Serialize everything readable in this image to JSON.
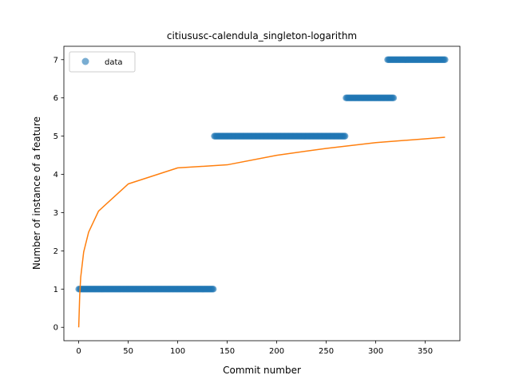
{
  "chart_data": {
    "type": "scatter",
    "title": "citiususc-calendula_singleton-logarithm",
    "xlabel": "Commit number",
    "ylabel": "Number of instance of a feature",
    "xlim": [
      -15,
      385
    ],
    "ylim": [
      -0.35,
      7.35
    ],
    "xticks": [
      0,
      50,
      100,
      150,
      200,
      250,
      300,
      350
    ],
    "yticks": [
      0,
      1,
      2,
      3,
      4,
      5,
      6,
      7
    ],
    "grid": false,
    "legend": {
      "placement": "top-left",
      "entries": [
        "data"
      ]
    },
    "colors": {
      "data": "#1f77b4",
      "fit": "#ff7f0e"
    },
    "series": [
      {
        "name": "data",
        "kind": "scatter",
        "segments": [
          {
            "x_start": 0,
            "x_end": 136,
            "y": 1
          },
          {
            "x_start": 137,
            "x_end": 269,
            "y": 5
          },
          {
            "x_start": 270,
            "x_end": 318,
            "y": 6
          },
          {
            "x_start": 312,
            "x_end": 370,
            "y": 7
          }
        ]
      },
      {
        "kind": "line",
        "model": "logarithmic",
        "x": [
          0,
          1,
          2,
          5,
          10,
          20,
          50,
          100,
          150,
          200,
          250,
          300,
          350,
          370
        ],
        "y": [
          0,
          0.84,
          1.31,
          1.97,
          2.49,
          3.04,
          3.75,
          4.17,
          4.25,
          4.5,
          4.68,
          4.83,
          4.93,
          4.97
        ]
      }
    ]
  }
}
